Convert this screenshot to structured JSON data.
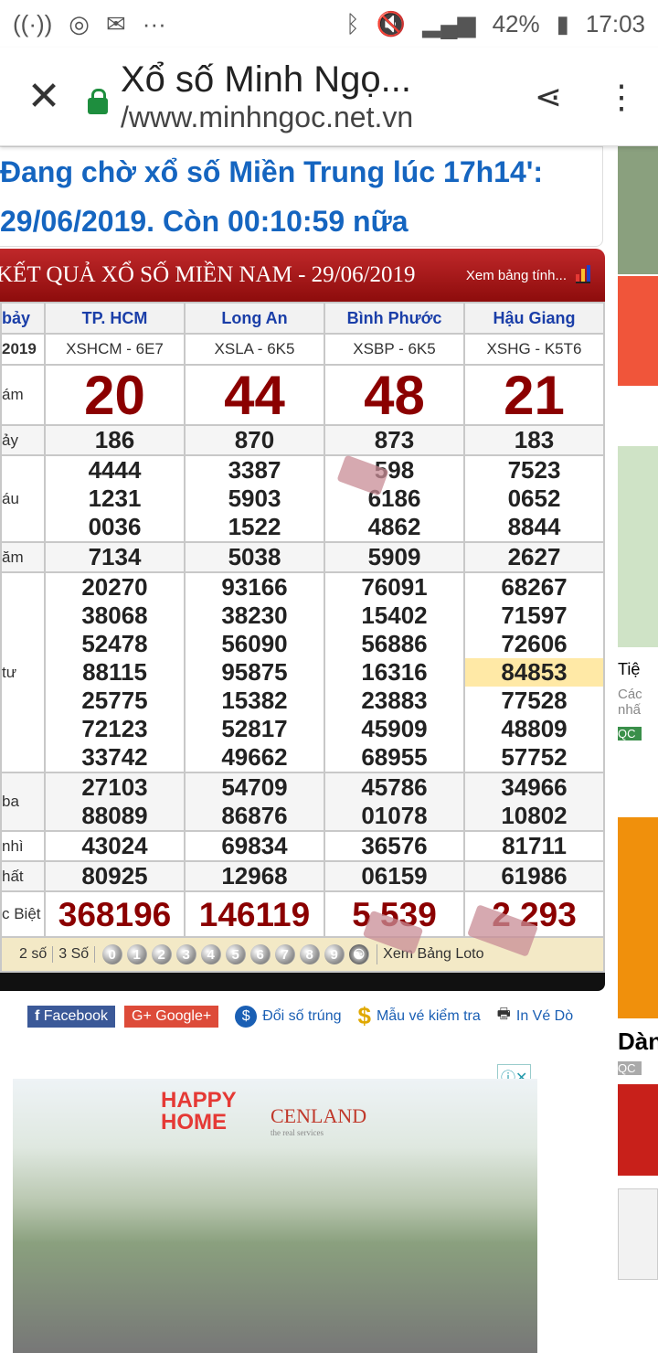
{
  "status_bar": {
    "battery": "42%",
    "time": "17:03"
  },
  "browser": {
    "title": "Xổ số Minh Ngọ...",
    "url": "/www.minhngoc.net.vn"
  },
  "notice": {
    "line1": "Đang chờ xổ số Miền Trung lúc 17h14':",
    "line2": "29/06/2019. Còn 00:10:59 nữa"
  },
  "results": {
    "title": "KẾT QUẢ XỔ SỐ MIỀN NAM - 29/06/2019",
    "view_table": "Xem bảng tính...",
    "day_label": "bảy",
    "date_label": "2019",
    "provinces": [
      "TP. HCM",
      "Long An",
      "Bình Phước",
      "Hậu Giang"
    ],
    "codes": [
      "XSHCM - 6E7",
      "XSLA - 6K5",
      "XSBP - 6K5",
      "XSHG - K5T6"
    ],
    "prizes": [
      {
        "label": "ám",
        "values": [
          [
            "20"
          ],
          [
            "44"
          ],
          [
            "48"
          ],
          [
            "21"
          ]
        ]
      },
      {
        "label": "ảy",
        "values": [
          [
            "186"
          ],
          [
            "870"
          ],
          [
            "873"
          ],
          [
            "183"
          ]
        ]
      },
      {
        "label": "áu",
        "values": [
          [
            "4444",
            "1231",
            "0036"
          ],
          [
            "3387",
            "5903",
            "1522"
          ],
          [
            "598",
            "6186",
            "4862"
          ],
          [
            "7523",
            "0652",
            "8844"
          ]
        ]
      },
      {
        "label": "ăm",
        "values": [
          [
            "7134"
          ],
          [
            "5038"
          ],
          [
            "5909"
          ],
          [
            "2627"
          ]
        ]
      },
      {
        "label": "tư",
        "values": [
          [
            "20270",
            "38068",
            "52478",
            "88115",
            "25775",
            "72123",
            "33742"
          ],
          [
            "93166",
            "38230",
            "56090",
            "95875",
            "15382",
            "52817",
            "49662"
          ],
          [
            "76091",
            "15402",
            "56886",
            "16316",
            "23883",
            "45909",
            "68955"
          ],
          [
            "68267",
            "71597",
            "72606",
            "84853",
            "77528",
            "48809",
            "57752"
          ]
        ]
      },
      {
        "label": "ba",
        "values": [
          [
            "27103",
            "88089"
          ],
          [
            "54709",
            "86876"
          ],
          [
            "45786",
            "01078"
          ],
          [
            "34966",
            "10802"
          ]
        ]
      },
      {
        "label": "nhì",
        "values": [
          [
            "43024"
          ],
          [
            "69834"
          ],
          [
            "36576"
          ],
          [
            "81711"
          ]
        ]
      },
      {
        "label": "hất",
        "values": [
          [
            "80925"
          ],
          [
            "12968"
          ],
          [
            "06159"
          ],
          [
            "61986"
          ]
        ]
      },
      {
        "label": "c Biệt",
        "values": [
          [
            "368196"
          ],
          [
            "146119"
          ],
          [
            "5  539"
          ],
          [
            "2  293"
          ]
        ]
      }
    ],
    "highlighted": "84853"
  },
  "loto": {
    "two": "2 số",
    "three": "3 Số",
    "digits": [
      "0",
      "1",
      "2",
      "3",
      "4",
      "5",
      "6",
      "7",
      "8",
      "9"
    ],
    "view": "Xem Bảng Loto"
  },
  "share": {
    "facebook": "Facebook",
    "google": "Google+",
    "doi_so": "Đổi số trúng",
    "mau_ve": "Mẫu vé kiểm tra",
    "in_ve": "In Vé Dò"
  },
  "ad": {
    "brand1": "HAPPY HOME",
    "brand2": "CENLAND",
    "tagline": "the real services"
  },
  "side": {
    "t1": "Tiệ",
    "t2": "Các",
    "t3": "nhấ",
    "qc": "QC",
    "t4": "Dàn",
    "qc2": "QC"
  },
  "colors": {
    "header_red": "#b01c1c",
    "prize_red": "#8b0000",
    "province_blue": "#1a3ea8",
    "notice_blue": "#1565c0"
  }
}
